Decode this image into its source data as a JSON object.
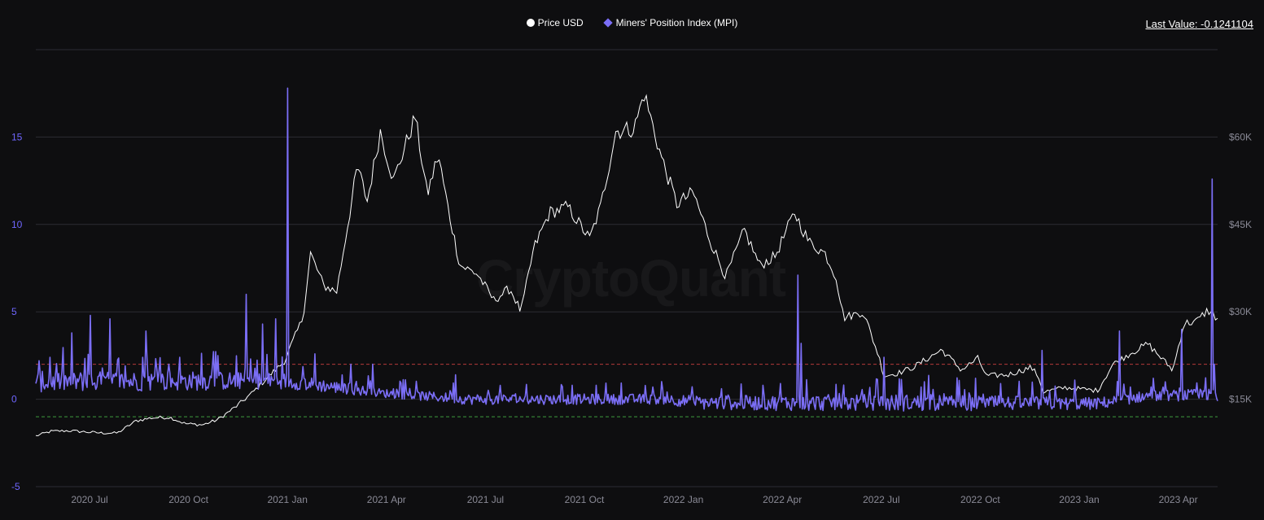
{
  "header": {
    "last_value_label": "Last Value:",
    "last_value": "-0.1241104"
  },
  "legend": {
    "price_label": "Price USD",
    "mpi_label": "Miners' Position Index (MPI)"
  },
  "watermark": "CryptoQuant",
  "colors": {
    "background": "#0e0e10",
    "price": "#ffffff",
    "mpi": "#7b6ef6",
    "left_axis_text": "#6f66ff",
    "right_axis_text": "#8a8a96",
    "grid": "#2c2c33",
    "upper_threshold": "#b53a3a",
    "lower_threshold": "#3e9a3e"
  },
  "chart_data": {
    "type": "line",
    "title": "",
    "x_tick_labels": [
      "2020 Jul",
      "2020 Oct",
      "2021 Jan",
      "2021 Apr",
      "2021 Jul",
      "2021 Oct",
      "2022 Jan",
      "2022 Apr",
      "2022 Jul",
      "2022 Oct",
      "2023 Jan",
      "2023 Apr"
    ],
    "x_range": [
      "2020-05-01",
      "2023-04-20"
    ],
    "left_axis": {
      "ticks": [
        "-5",
        "0",
        "5",
        "10",
        "15"
      ],
      "range": [
        -5,
        20
      ]
    },
    "right_axis": {
      "ticks": [
        "$15K",
        "$30K",
        "$45K",
        "$60K"
      ],
      "range": [
        0,
        75000
      ],
      "unit": "USD"
    },
    "reference_lines": [
      {
        "value": 2.0,
        "axis": "left",
        "style": "dashed",
        "color": "upper_threshold"
      },
      {
        "value": -1.0,
        "axis": "left",
        "style": "dashed",
        "color": "lower_threshold"
      }
    ],
    "series": [
      {
        "name": "Price USD",
        "axis": "right",
        "points": [
          [
            "2020-05-01",
            8700
          ],
          [
            "2020-05-15",
            9500
          ],
          [
            "2020-06-01",
            9600
          ],
          [
            "2020-06-15",
            9400
          ],
          [
            "2020-07-01",
            9200
          ],
          [
            "2020-07-15",
            9200
          ],
          [
            "2020-08-01",
            11300
          ],
          [
            "2020-08-15",
            11800
          ],
          [
            "2020-09-01",
            11900
          ],
          [
            "2020-09-15",
            10800
          ],
          [
            "2020-10-01",
            10600
          ],
          [
            "2020-10-15",
            11500
          ],
          [
            "2020-11-01",
            13800
          ],
          [
            "2020-11-15",
            16000
          ],
          [
            "2020-12-01",
            19000
          ],
          [
            "2020-12-15",
            21500
          ],
          [
            "2021-01-01",
            29000
          ],
          [
            "2021-01-08",
            40000
          ],
          [
            "2021-01-20",
            34500
          ],
          [
            "2021-02-01",
            33500
          ],
          [
            "2021-02-20",
            55000
          ],
          [
            "2021-03-01",
            49000
          ],
          [
            "2021-03-13",
            61000
          ],
          [
            "2021-03-25",
            52500
          ],
          [
            "2021-04-14",
            63500
          ],
          [
            "2021-04-25",
            50000
          ],
          [
            "2021-05-05",
            57000
          ],
          [
            "2021-05-15",
            47000
          ],
          [
            "2021-05-25",
            38000
          ],
          [
            "2021-06-10",
            36500
          ],
          [
            "2021-06-25",
            32000
          ],
          [
            "2021-07-10",
            34000
          ],
          [
            "2021-07-20",
            30000
          ],
          [
            "2021-08-01",
            41000
          ],
          [
            "2021-08-15",
            47000
          ],
          [
            "2021-09-01",
            48000
          ],
          [
            "2021-09-21",
            42500
          ],
          [
            "2021-10-01",
            48000
          ],
          [
            "2021-10-15",
            61000
          ],
          [
            "2021-11-01",
            61500
          ],
          [
            "2021-11-10",
            67500
          ],
          [
            "2021-11-25",
            57000
          ],
          [
            "2021-12-10",
            48500
          ],
          [
            "2021-12-25",
            50500
          ],
          [
            "2022-01-10",
            42000
          ],
          [
            "2022-01-24",
            36000
          ],
          [
            "2022-02-10",
            44000
          ],
          [
            "2022-02-24",
            38000
          ],
          [
            "2022-03-10",
            39500
          ],
          [
            "2022-03-28",
            47000
          ],
          [
            "2022-04-10",
            42000
          ],
          [
            "2022-04-25",
            40000
          ],
          [
            "2022-05-05",
            36000
          ],
          [
            "2022-05-12",
            29000
          ],
          [
            "2022-05-30",
            30000
          ],
          [
            "2022-06-13",
            22500
          ],
          [
            "2022-06-18",
            19000
          ],
          [
            "2022-07-01",
            19500
          ],
          [
            "2022-07-15",
            20500
          ],
          [
            "2022-08-10",
            23500
          ],
          [
            "2022-08-28",
            20000
          ],
          [
            "2022-09-12",
            22000
          ],
          [
            "2022-09-20",
            19000
          ],
          [
            "2022-10-10",
            19200
          ],
          [
            "2022-10-31",
            20500
          ],
          [
            "2022-11-08",
            18500
          ],
          [
            "2022-11-10",
            16200
          ],
          [
            "2022-12-01",
            17000
          ],
          [
            "2022-12-31",
            16500
          ],
          [
            "2023-01-14",
            21000
          ],
          [
            "2023-01-31",
            23000
          ],
          [
            "2023-02-15",
            24500
          ],
          [
            "2023-03-10",
            20000
          ],
          [
            "2023-03-20",
            28000
          ],
          [
            "2023-04-01",
            28400
          ],
          [
            "2023-04-11",
            30300
          ],
          [
            "2023-04-20",
            28800
          ]
        ]
      },
      {
        "name": "Miners' Position Index (MPI)",
        "axis": "left",
        "baseline_ranges": [
          [
            "2020-05-01",
            0.4,
            1.6
          ],
          [
            "2020-10-01",
            0.5,
            1.6
          ],
          [
            "2020-12-15",
            0.6,
            1.5
          ],
          [
            "2021-03-15",
            0.1,
            0.6
          ],
          [
            "2021-06-01",
            -0.3,
            0.3
          ],
          [
            "2021-12-01",
            -0.3,
            0.3
          ],
          [
            "2022-01-01",
            -0.6,
            0.2
          ],
          [
            "2022-06-15",
            -0.7,
            0.3
          ],
          [
            "2022-12-31",
            -0.6,
            0.1
          ],
          [
            "2023-02-15",
            -0.1,
            0.5
          ],
          [
            "2023-04-20",
            -0.1,
            0.6
          ]
        ],
        "spikes": [
          [
            "2020-05-04",
            2.2
          ],
          [
            "2020-05-14",
            2.4
          ],
          [
            "2020-06-03",
            3.8
          ],
          [
            "2020-06-20",
            4.8
          ],
          [
            "2020-07-08",
            4.6
          ],
          [
            "2020-08-10",
            3.9
          ],
          [
            "2020-09-10",
            2.4
          ],
          [
            "2020-10-15",
            2.5
          ],
          [
            "2020-11-10",
            6.0
          ],
          [
            "2020-11-25",
            4.3
          ],
          [
            "2020-12-07",
            4.6
          ],
          [
            "2020-12-18",
            17.8
          ],
          [
            "2021-01-12",
            2.6
          ],
          [
            "2021-02-14",
            2.0
          ],
          [
            "2021-03-06",
            2.0
          ],
          [
            "2021-05-21",
            1.4
          ],
          [
            "2021-09-05",
            0.8
          ],
          [
            "2021-11-18",
            0.7
          ],
          [
            "2022-01-20",
            0.6
          ],
          [
            "2022-02-27",
            0.8
          ],
          [
            "2022-03-15",
            0.9
          ],
          [
            "2022-03-31",
            7.1
          ],
          [
            "2022-04-03",
            3.2
          ],
          [
            "2022-06-18",
            2.4
          ],
          [
            "2022-07-25",
            1.0
          ],
          [
            "2022-09-10",
            1.2
          ],
          [
            "2022-11-10",
            2.8
          ],
          [
            "2022-12-10",
            1.1
          ],
          [
            "2023-01-20",
            3.9
          ],
          [
            "2023-02-20",
            1.2
          ],
          [
            "2023-03-18",
            4.0
          ],
          [
            "2023-04-15",
            12.6
          ],
          [
            "2023-04-17",
            2.0
          ],
          [
            "2023-04-20",
            -0.1
          ]
        ],
        "last_value": -0.1241104
      }
    ],
    "grid": true,
    "legend_position": "top-center"
  }
}
